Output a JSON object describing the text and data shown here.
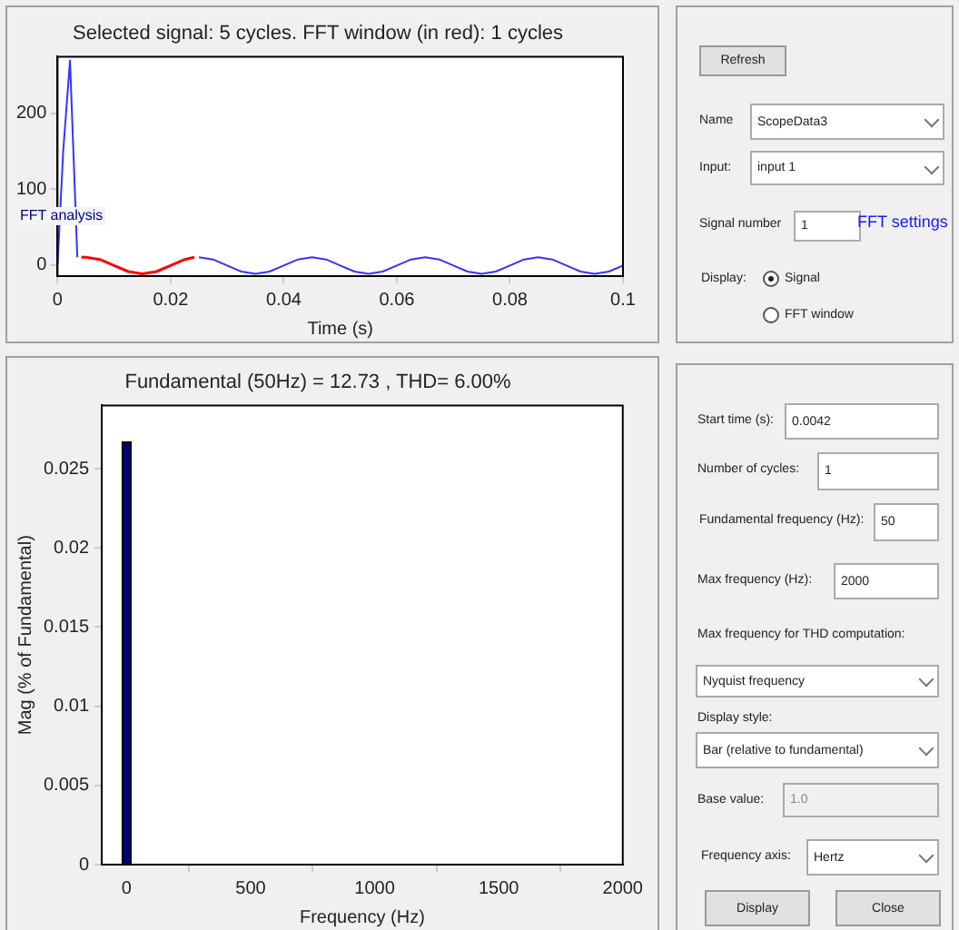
{
  "chart_data": [
    {
      "type": "line",
      "title": "Selected signal: 5 cycles. FFT window (in red): 1 cycles",
      "xlabel": "Time (s)",
      "annotations": [
        "FFT analysis"
      ],
      "xlim": [
        0,
        0.1
      ],
      "xticks": [
        0,
        0.02,
        0.04,
        0.06,
        0.08,
        0.1
      ],
      "ylim": [
        -15,
        275
      ],
      "yticks": [
        0,
        100,
        200
      ],
      "grid": false,
      "legend": false,
      "marker": "none",
      "series": [
        {
          "color": "#3333ff",
          "x": [
            0,
            0.001,
            0.0022,
            0.0035,
            0.005,
            0.0075,
            0.01,
            0.0125,
            0.015,
            0.0175,
            0.02,
            0.0225,
            0.025,
            0.0275,
            0.03,
            0.0325,
            0.035,
            0.0375,
            0.04,
            0.0425,
            0.045,
            0.0475,
            0.05,
            0.0525,
            0.055,
            0.0575,
            0.06,
            0.0625,
            0.065,
            0.0675,
            0.07,
            0.0725,
            0.075,
            0.0775,
            0.08,
            0.0825,
            0.085,
            0.0875,
            0.09,
            0.0925,
            0.095,
            0.0975,
            0.1
          ],
          "values": [
            0,
            150,
            270,
            10,
            null,
            null,
            null,
            null,
            null,
            null,
            null,
            null,
            10,
            7,
            -1,
            -9,
            -12,
            -9,
            -1,
            7,
            10,
            7,
            -1,
            -9,
            -12,
            -9,
            -1,
            7,
            10,
            7,
            -1,
            -9,
            -12,
            -9,
            -1,
            7,
            10,
            7,
            -1,
            -9,
            -12,
            -9,
            -1
          ]
        },
        {
          "color": "#ff0000",
          "x": [
            0.0042,
            0.005,
            0.0075,
            0.01,
            0.0125,
            0.015,
            0.0175,
            0.02,
            0.0225,
            0.0242
          ],
          "values": [
            10,
            10,
            7,
            -1,
            -9,
            -12,
            -9,
            -1,
            7,
            10
          ]
        }
      ]
    },
    {
      "type": "bar",
      "title": "Fundamental (50Hz) = 12.73 , THD= 6.00%",
      "xlabel": "Frequency (Hz)",
      "ylabel": "Mag (% of Fundamental)",
      "x": [
        0
      ],
      "values": [
        0.0267
      ],
      "color": "#000080",
      "xlim": [
        -100,
        2000
      ],
      "xticks": [
        0,
        500,
        1000,
        1500,
        2000
      ],
      "ylim": [
        0,
        0.029
      ],
      "yticks": [
        0,
        0.005,
        0.01,
        0.015,
        0.02,
        0.025
      ],
      "grid": false,
      "legend": false
    },
    {
      "type": "other",
      "annotations": [
        "Refresh",
        "Name",
        "ScopeData3",
        "Input:",
        "input 1",
        "Signal number",
        "1",
        "FFT settings",
        "Display:",
        "Signal",
        "FFT window"
      ]
    },
    {
      "type": "other",
      "annotations": [
        "Start time (s):",
        "0.0042",
        "Number of cycles:",
        "1",
        "Fundamental frequency (Hz):",
        "50",
        "Max frequency (Hz):",
        "2000",
        "Max frequency for THD computation:",
        "Nyquist frequency",
        "Display style:",
        "Bar (relative to fundamental)",
        "Base value:",
        "1.0",
        "Frequency axis:",
        "Hertz",
        "Display",
        "Close"
      ]
    }
  ]
}
